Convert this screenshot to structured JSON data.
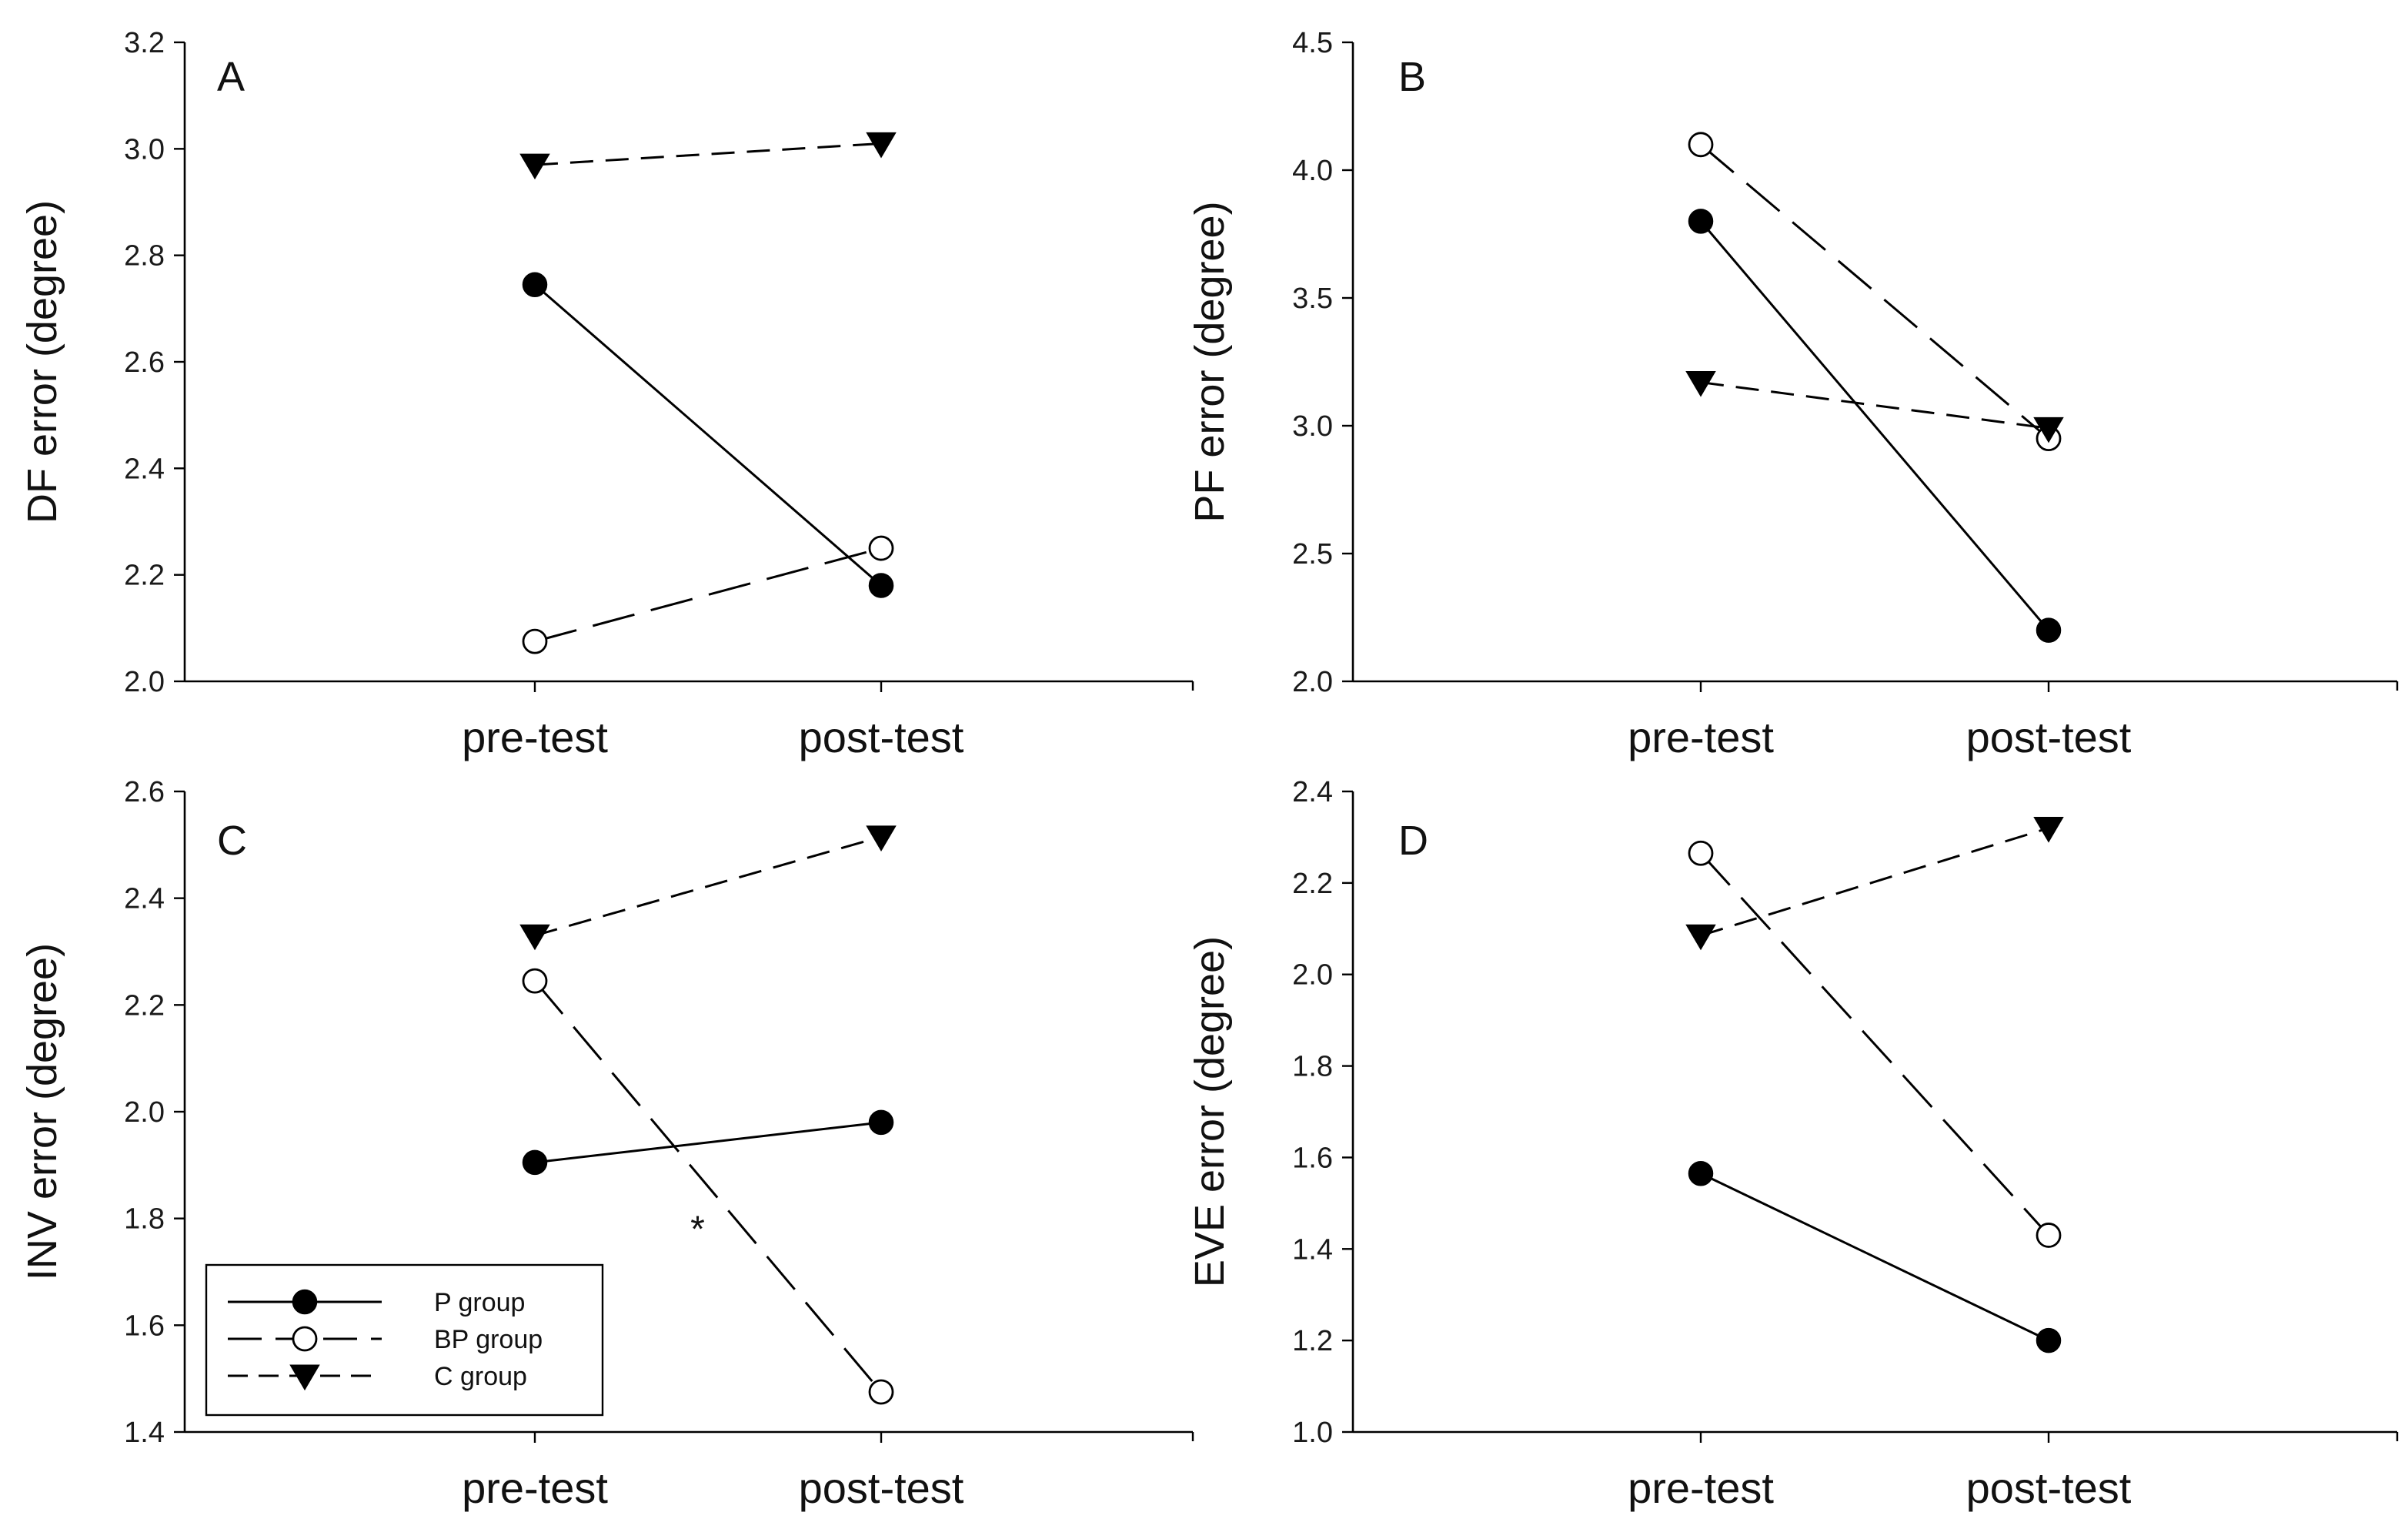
{
  "chart_data": [
    {
      "type": "line",
      "panel": "A",
      "title": "",
      "xlabel": "",
      "ylabel": "DF error (degree)",
      "categories": [
        "pre-test",
        "post-test"
      ],
      "ylim": [
        2.0,
        3.2
      ],
      "yticks": [
        "2.0",
        "2.2",
        "2.4",
        "2.6",
        "2.8",
        "3.0",
        "3.2"
      ],
      "grid": false,
      "series": [
        {
          "name": "P group",
          "marker": "filled-circle",
          "dash": "solid",
          "values": [
            2.745,
            2.18
          ]
        },
        {
          "name": "BP group",
          "marker": "open-circle",
          "dash": "long-dash",
          "values": [
            2.075,
            2.25
          ]
        },
        {
          "name": "C group",
          "marker": "filled-triangle-down",
          "dash": "dash",
          "values": [
            2.97,
            3.01
          ]
        }
      ],
      "annotations": []
    },
    {
      "type": "line",
      "panel": "B",
      "title": "",
      "xlabel": "",
      "ylabel": "PF error (degree)",
      "categories": [
        "pre-test",
        "post-test"
      ],
      "ylim": [
        2.0,
        4.5
      ],
      "yticks": [
        "2.0",
        "2.5",
        "3.0",
        "3.5",
        "4.0",
        "4.5"
      ],
      "grid": false,
      "series": [
        {
          "name": "P group",
          "marker": "filled-circle",
          "dash": "solid",
          "values": [
            3.8,
            2.2
          ]
        },
        {
          "name": "BP group",
          "marker": "open-circle",
          "dash": "long-dash",
          "values": [
            4.1,
            2.95
          ]
        },
        {
          "name": "C group",
          "marker": "filled-triangle-down",
          "dash": "dash",
          "values": [
            3.17,
            2.99
          ]
        }
      ],
      "annotations": []
    },
    {
      "type": "line",
      "panel": "C",
      "title": "",
      "xlabel": "",
      "ylabel": "INV error (degree)",
      "categories": [
        "pre-test",
        "post-test"
      ],
      "ylim": [
        1.4,
        2.6
      ],
      "yticks": [
        "1.4",
        "1.6",
        "1.8",
        "2.0",
        "2.2",
        "2.4",
        "2.6"
      ],
      "grid": false,
      "legend": {
        "placement": "bottom-left",
        "entries": [
          "P group",
          "BP group",
          "C group"
        ]
      },
      "series": [
        {
          "name": "P group",
          "marker": "filled-circle",
          "dash": "solid",
          "values": [
            1.905,
            1.98
          ]
        },
        {
          "name": "BP group",
          "marker": "open-circle",
          "dash": "long-dash",
          "values": [
            2.245,
            1.475
          ]
        },
        {
          "name": "C group",
          "marker": "filled-triangle-down",
          "dash": "dash",
          "values": [
            2.33,
            2.515
          ]
        }
      ],
      "annotations": [
        {
          "text": "*",
          "x": 0.47,
          "y": 1.8
        }
      ]
    },
    {
      "type": "line",
      "panel": "D",
      "title": "",
      "xlabel": "",
      "ylabel": "EVE error (degree)",
      "categories": [
        "pre-test",
        "post-test"
      ],
      "ylim": [
        1.0,
        2.4
      ],
      "yticks": [
        "1.0",
        "1.2",
        "1.4",
        "1.6",
        "1.8",
        "2.0",
        "2.2",
        "2.4"
      ],
      "grid": false,
      "series": [
        {
          "name": "P group",
          "marker": "filled-circle",
          "dash": "solid",
          "values": [
            1.565,
            1.2
          ]
        },
        {
          "name": "BP group",
          "marker": "open-circle",
          "dash": "long-dash",
          "values": [
            2.265,
            1.43
          ]
        },
        {
          "name": "C group",
          "marker": "filled-triangle-down",
          "dash": "dash",
          "values": [
            2.085,
            2.32
          ]
        }
      ],
      "annotations": []
    }
  ]
}
